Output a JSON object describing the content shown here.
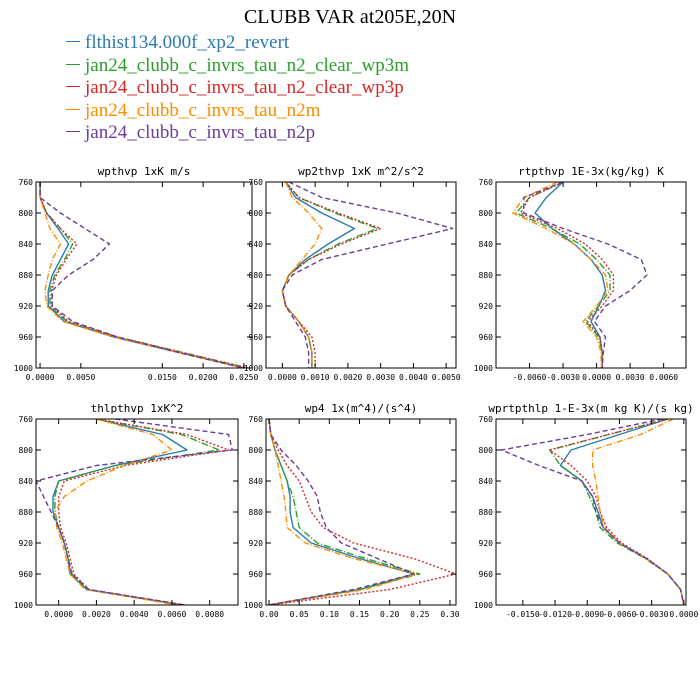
{
  "title": "CLUBB VAR at205E,20N",
  "series": [
    {
      "name": "flthist134.000f_xp2_revert",
      "color": "#2a7ab0",
      "dash": ""
    },
    {
      "name": "jan24_clubb_c_invrs_tau_n2_clear_wp3m",
      "color": "#2ca02c",
      "dash": "7,2,1,2"
    },
    {
      "name": "jan24_clubb_c_invrs_tau_n2_clear_wp3p",
      "color": "#d62728",
      "dash": "2,2"
    },
    {
      "name": "jan24_clubb_c_invrs_tau_n2m",
      "color": "#ff8c00",
      "dash": "6,2,1,2"
    },
    {
      "name": "jan24_clubb_c_invrs_tau_n2p",
      "color": "#6a3d9a",
      "dash": "5,3"
    }
  ],
  "chart_data": [
    {
      "type": "line",
      "title": "wpthvp  1xK m/s",
      "xlim": [
        -0.0005,
        0.026
      ],
      "ylim": [
        760,
        1000
      ],
      "xticks": [
        0.0,
        0.005,
        0.015,
        0.02,
        0.025
      ],
      "xticklabels": [
        "0.0000",
        "0.0050",
        "0.0150",
        "0.0200",
        "0.0250"
      ],
      "yticks": [
        760,
        800,
        840,
        880,
        920,
        960,
        1000
      ],
      "y": [
        760,
        780,
        800,
        820,
        840,
        860,
        880,
        900,
        920,
        940,
        960,
        980,
        1000
      ],
      "series": [
        {
          "x": [
            0.0,
            0.0,
            0.0008,
            0.0022,
            0.0035,
            0.0025,
            0.0015,
            0.001,
            0.001,
            0.003,
            0.009,
            0.017,
            0.025
          ]
        },
        {
          "x": [
            0.0,
            0.0,
            0.0008,
            0.0025,
            0.004,
            0.003,
            0.0018,
            0.0012,
            0.0012,
            0.0033,
            0.0095,
            0.0175,
            0.0255
          ]
        },
        {
          "x": [
            0.0,
            0.0,
            0.0008,
            0.0025,
            0.0045,
            0.0032,
            0.002,
            0.0014,
            0.0014,
            0.0035,
            0.0095,
            0.0175,
            0.0255
          ]
        },
        {
          "x": [
            0.0,
            0.0,
            0.0006,
            0.0012,
            0.0025,
            0.0015,
            0.001,
            0.0006,
            0.0008,
            0.0028,
            0.009,
            0.017,
            0.025
          ]
        },
        {
          "x": [
            0.0,
            0.0,
            0.0025,
            0.0055,
            0.0085,
            0.0065,
            0.0035,
            0.0015,
            0.0015,
            0.004,
            0.0095,
            0.017,
            0.025
          ]
        }
      ]
    },
    {
      "type": "line",
      "title": "wp2thvp  1xK m^2/s^2",
      "xlim": [
        -0.0005,
        0.0053
      ],
      "ylim": [
        760,
        1000
      ],
      "xticks": [
        0.0,
        0.001,
        0.002,
        0.003,
        0.004,
        0.005
      ],
      "xticklabels": [
        "0.0000",
        "0.0010",
        "0.0020",
        "0.0030",
        "0.0040",
        "0.0050"
      ],
      "yticks": [
        760,
        800,
        840,
        880,
        920,
        960,
        1000
      ],
      "y": [
        760,
        780,
        800,
        820,
        840,
        860,
        880,
        900,
        920,
        940,
        960,
        980,
        1000
      ],
      "series": [
        {
          "x": [
            0.0001,
            0.0004,
            0.0012,
            0.0022,
            0.0014,
            0.0007,
            0.0002,
            0.0,
            0.0001,
            0.0005,
            0.0008,
            0.0009,
            0.0009
          ]
        },
        {
          "x": [
            0.0001,
            0.0005,
            0.0016,
            0.0029,
            0.0017,
            0.0008,
            0.0002,
            0.0,
            0.0001,
            0.0005,
            0.0008,
            0.0009,
            0.0009
          ]
        },
        {
          "x": [
            0.0001,
            0.0005,
            0.0017,
            0.003,
            0.0018,
            0.0008,
            0.0002,
            0.0,
            0.0001,
            0.0005,
            0.0009,
            0.001,
            0.001
          ]
        },
        {
          "x": [
            0.0001,
            0.0003,
            0.0008,
            0.0012,
            0.001,
            0.0006,
            0.0002,
            0.0,
            0.0001,
            0.0005,
            0.0008,
            0.0009,
            0.0009
          ]
        },
        {
          "x": [
            0.0002,
            0.0012,
            0.0035,
            0.0052,
            0.0032,
            0.0012,
            0.0003,
            0.0,
            0.0001,
            0.0004,
            0.0007,
            0.0008,
            0.0008
          ]
        }
      ]
    },
    {
      "type": "line",
      "title": "rtpthvp  1E-3x(kg/kg) K",
      "xlim": [
        -0.009,
        0.008
      ],
      "ylim": [
        760,
        1000
      ],
      "xticks": [
        -0.006,
        -0.003,
        0.0,
        0.003,
        0.006
      ],
      "xticklabels": [
        "-0.0060",
        "-0.0030",
        "0.0000",
        "0.0030",
        "0.0060"
      ],
      "yticks": [
        760,
        800,
        840,
        880,
        920,
        960,
        1000
      ],
      "y": [
        760,
        780,
        800,
        820,
        840,
        860,
        880,
        900,
        920,
        940,
        960,
        980,
        1000
      ],
      "series": [
        {
          "x": [
            -0.003,
            -0.0045,
            -0.0055,
            -0.004,
            -0.002,
            -0.0005,
            0.0005,
            0.0008,
            0.0002,
            -0.0005,
            0.0003,
            0.0005,
            0.0005
          ]
        },
        {
          "x": [
            -0.003,
            -0.006,
            -0.0072,
            -0.004,
            -0.0015,
            0.0,
            0.0012,
            0.0012,
            0.0002,
            -0.001,
            0.0002,
            0.0005,
            0.0005
          ]
        },
        {
          "x": [
            -0.003,
            -0.006,
            -0.0068,
            -0.0035,
            -0.001,
            0.0005,
            0.0015,
            0.0015,
            0.0005,
            -0.0008,
            0.0003,
            0.0005,
            0.0005
          ]
        },
        {
          "x": [
            -0.0035,
            -0.0065,
            -0.0075,
            -0.0045,
            -0.002,
            -0.0005,
            0.0008,
            0.001,
            0.0,
            -0.0012,
            0.0,
            0.0004,
            0.0004
          ]
        },
        {
          "x": [
            -0.003,
            -0.0065,
            -0.0065,
            -0.003,
            0.001,
            0.004,
            0.0045,
            0.003,
            0.0008,
            -0.0002,
            0.0008,
            0.0006,
            0.0005
          ]
        }
      ]
    },
    {
      "type": "line",
      "title": "thlpthvp  1xK^2",
      "xlim": [
        -0.0012,
        0.0095
      ],
      "ylim": [
        760,
        1000
      ],
      "xticks": [
        0.0,
        0.002,
        0.004,
        0.006,
        0.008
      ],
      "xticklabels": [
        "0.0000",
        "0.0020",
        "0.0040",
        "0.0060",
        "0.0080"
      ],
      "yticks": [
        760,
        800,
        840,
        880,
        920,
        960,
        1000
      ],
      "y": [
        760,
        780,
        800,
        820,
        840,
        860,
        880,
        900,
        920,
        940,
        960,
        980,
        1000
      ],
      "series": [
        {
          "x": [
            0.002,
            0.0055,
            0.0068,
            0.003,
            0.0,
            -0.0003,
            -0.0003,
            0.0,
            0.0003,
            0.0005,
            0.0006,
            0.0015,
            0.0065
          ]
        },
        {
          "x": [
            0.002,
            0.0065,
            0.0085,
            0.003,
            0.0,
            -0.0002,
            -0.0002,
            0.0,
            0.0003,
            0.0005,
            0.0007,
            0.0015,
            0.0066
          ]
        },
        {
          "x": [
            0.002,
            0.0068,
            0.009,
            0.0035,
            0.0003,
            0.0,
            0.0,
            0.0001,
            0.0004,
            0.0006,
            0.0008,
            0.0016,
            0.0067
          ]
        },
        {
          "x": [
            0.002,
            0.005,
            0.006,
            0.0035,
            0.0015,
            0.0003,
            -0.0002,
            -0.0001,
            0.0002,
            0.0004,
            0.0006,
            0.0014,
            0.0063
          ]
        },
        {
          "x": [
            0.003,
            0.009,
            0.0092,
            0.002,
            -0.0012,
            -0.0008,
            -0.0004,
            0.0,
            0.0003,
            0.0005,
            0.0007,
            0.0016,
            0.0067
          ]
        }
      ]
    },
    {
      "type": "line",
      "title": "wp4  1x(m^4)/(s^4)",
      "xlim": [
        -0.005,
        0.31
      ],
      "ylim": [
        760,
        1000
      ],
      "xticks": [
        0.0,
        0.05,
        0.1,
        0.15,
        0.2,
        0.25,
        0.3
      ],
      "xticklabels": [
        "0.00",
        "0.05",
        "0.10",
        "0.15",
        "0.20",
        "0.25",
        "0.30"
      ],
      "yticks": [
        760,
        800,
        840,
        880,
        920,
        960,
        1000
      ],
      "y": [
        760,
        780,
        800,
        820,
        840,
        860,
        880,
        900,
        920,
        940,
        960,
        980,
        1000
      ],
      "series": [
        {
          "x": [
            0.0,
            0.003,
            0.01,
            0.02,
            0.03,
            0.035,
            0.035,
            0.04,
            0.07,
            0.15,
            0.24,
            0.15,
            0.0
          ]
        },
        {
          "x": [
            0.0,
            0.003,
            0.01,
            0.02,
            0.03,
            0.04,
            0.045,
            0.05,
            0.08,
            0.16,
            0.25,
            0.15,
            0.0
          ]
        },
        {
          "x": [
            0.0,
            0.003,
            0.015,
            0.03,
            0.05,
            0.06,
            0.07,
            0.09,
            0.14,
            0.24,
            0.31,
            0.2,
            0.0
          ]
        },
        {
          "x": [
            0.0,
            0.003,
            0.01,
            0.015,
            0.02,
            0.025,
            0.028,
            0.03,
            0.06,
            0.14,
            0.245,
            0.16,
            0.0
          ]
        },
        {
          "x": [
            0.0,
            0.003,
            0.02,
            0.045,
            0.065,
            0.08,
            0.085,
            0.095,
            0.12,
            0.18,
            0.24,
            0.14,
            0.0
          ]
        }
      ]
    },
    {
      "type": "line",
      "title": "wprtpthlp  1-E-3x(m kg K)/(s kg)",
      "xlim": [
        -0.0175,
        0.0002
      ],
      "ylim": [
        760,
        1000
      ],
      "xticks": [
        -0.015,
        -0.012,
        -0.009,
        -0.006,
        -0.003,
        0.0
      ],
      "xticklabels": [
        "-0.0150",
        "-0.0120",
        "-0.0090",
        "-0.0060",
        "-0.0030",
        "0.0000"
      ],
      "yticks": [
        760,
        800,
        840,
        880,
        920,
        960,
        1000
      ],
      "y": [
        760,
        780,
        800,
        820,
        840,
        860,
        880,
        900,
        920,
        940,
        960,
        980,
        1000
      ],
      "series": [
        {
          "x": [
            -0.0015,
            -0.006,
            -0.0105,
            -0.0115,
            -0.0095,
            -0.0085,
            -0.008,
            -0.0075,
            -0.006,
            -0.0035,
            -0.0015,
            -0.0003,
            0.0
          ]
        },
        {
          "x": [
            -0.0015,
            -0.007,
            -0.0125,
            -0.0115,
            -0.0095,
            -0.0088,
            -0.0082,
            -0.0078,
            -0.0062,
            -0.0036,
            -0.0015,
            -0.0003,
            0.0
          ]
        },
        {
          "x": [
            -0.0015,
            -0.007,
            -0.0125,
            -0.0105,
            -0.009,
            -0.0082,
            -0.0078,
            -0.0072,
            -0.0058,
            -0.0034,
            -0.0015,
            -0.0003,
            0.0
          ]
        },
        {
          "x": [
            -0.001,
            -0.004,
            -0.0085,
            -0.0085,
            -0.0082,
            -0.008,
            -0.0078,
            -0.0074,
            -0.006,
            -0.0035,
            -0.0015,
            -0.0003,
            0.0
          ]
        },
        {
          "x": [
            -0.002,
            -0.009,
            -0.017,
            -0.0135,
            -0.0095,
            -0.0085,
            -0.0082,
            -0.0075,
            -0.006,
            -0.0035,
            -0.0015,
            -0.0003,
            0.0
          ]
        }
      ]
    }
  ]
}
